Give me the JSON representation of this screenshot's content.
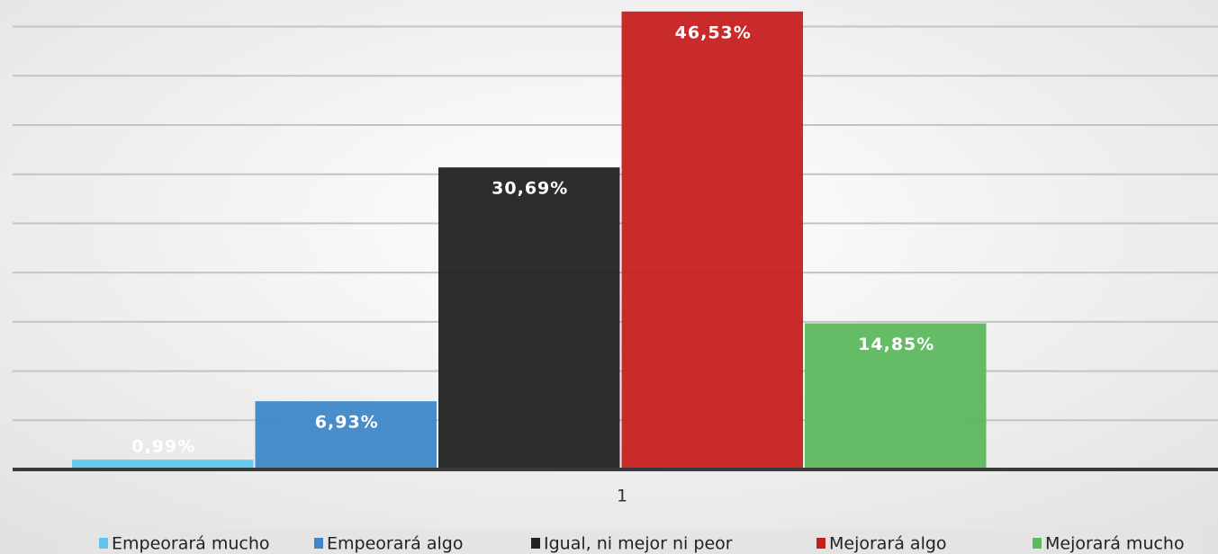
{
  "chart_data": {
    "type": "bar",
    "categories": [
      "1"
    ],
    "series": [
      {
        "name": "Empeorará mucho",
        "color": "#5ec6ee",
        "values": [
          0.99
        ],
        "value_labels": [
          "0,99%"
        ]
      },
      {
        "name": "Empeorará algo",
        "color": "#3f87c8",
        "values": [
          6.93
        ],
        "value_labels": [
          "6,93%"
        ]
      },
      {
        "name": "Igual, ni mejor ni peor",
        "color": "#222222",
        "values": [
          30.69
        ],
        "value_labels": [
          "30,69%"
        ]
      },
      {
        "name": "Mejorará algo",
        "color": "#c61f1f",
        "values": [
          46.53
        ],
        "value_labels": [
          "46,53%"
        ]
      },
      {
        "name": "Mejorará mucho",
        "color": "#5cb85f",
        "values": [
          14.85
        ],
        "value_labels": [
          "14,85%"
        ]
      }
    ],
    "ylim": [
      0,
      47.7
    ],
    "yticks": [
      0,
      5,
      10,
      15,
      20,
      25,
      30,
      35,
      40,
      45
    ],
    "grid": true,
    "legend": "bottom"
  }
}
